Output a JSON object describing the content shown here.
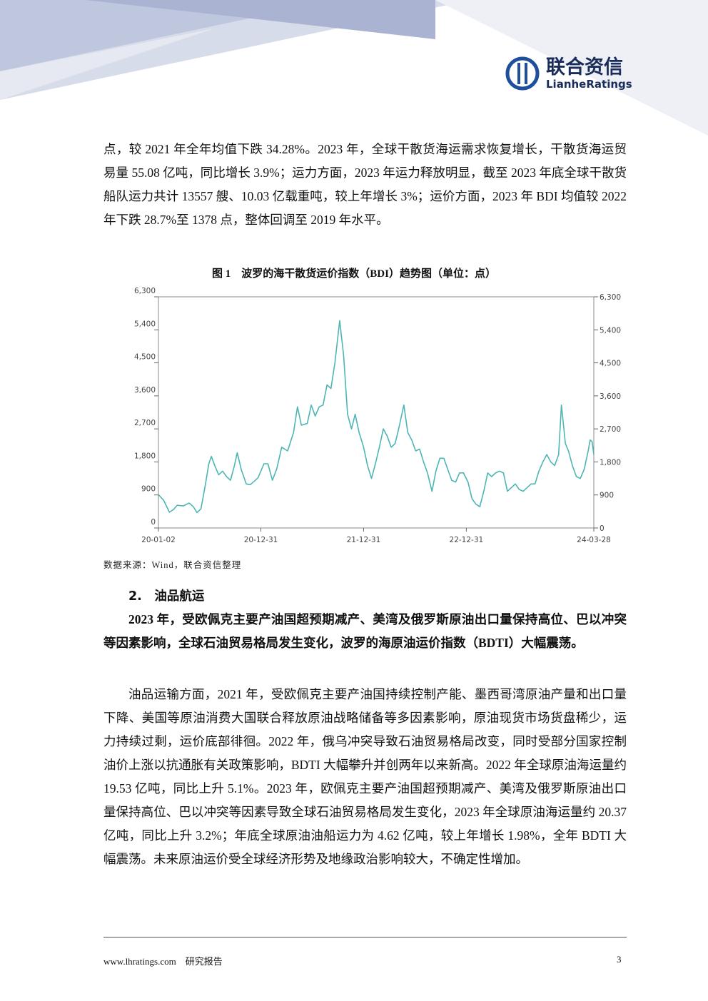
{
  "header": {
    "logo_cn": "联合资信",
    "logo_en": "LianheRatings"
  },
  "paragraphs": [
    "点，较 2021 年全年均值下跌 34.28%。2023 年，全球干散货海运需求恢复增长，干散货海运贸易量 55.08 亿吨，同比增长 3.9%；运力方面，2023 年运力释放明显，截至 2023 年底全球干散货船队运力共计 13557 艘、10.03 亿载重吨，较上年增长 3%；运价方面，2023 年 BDI 均值较 2022 年下跌 28.7%至 1378 点，整体回调至 2019 年水平。"
  ],
  "figure": {
    "caption": "图 1　波罗的海干散货运价指数（BDI）趋势图（单位：点）",
    "source": "数据来源：Wind，联合资信整理"
  },
  "chart_data": {
    "type": "line",
    "x": [
      "20-01-02",
      "20-01-20",
      "20-02-10",
      "20-02-24",
      "20-03-09",
      "20-03-30",
      "20-04-20",
      "20-05-05",
      "20-05-18",
      "20-06-01",
      "20-06-15",
      "20-06-29",
      "20-07-08",
      "20-07-20",
      "20-08-03",
      "20-08-17",
      "20-08-31",
      "20-09-14",
      "20-09-28",
      "20-10-08",
      "20-10-22",
      "20-11-09",
      "20-11-23",
      "20-12-07",
      "20-12-21",
      "21-01-11",
      "21-01-25",
      "21-02-10",
      "21-02-25",
      "21-03-15",
      "21-04-05",
      "21-04-26",
      "21-05-10",
      "21-05-24",
      "21-06-14",
      "21-06-28",
      "21-07-12",
      "21-07-26",
      "21-08-09",
      "21-08-23",
      "21-09-06",
      "21-09-20",
      "21-10-07",
      "21-10-21",
      "21-11-04",
      "21-11-18",
      "21-12-01",
      "21-12-15",
      "21-12-31",
      "22-01-14",
      "22-01-28",
      "22-02-11",
      "22-02-25",
      "22-03-11",
      "22-03-25",
      "22-04-08",
      "22-04-22",
      "22-05-06",
      "22-05-23",
      "22-06-06",
      "22-06-20",
      "22-07-04",
      "22-07-18",
      "22-08-01",
      "22-08-15",
      "22-08-31",
      "22-09-14",
      "22-09-28",
      "22-10-12",
      "22-10-26",
      "22-11-09",
      "22-11-23",
      "22-12-07",
      "22-12-21",
      "23-01-06",
      "23-01-20",
      "23-02-03",
      "23-02-17",
      "23-03-03",
      "23-03-17",
      "23-03-31",
      "23-04-14",
      "23-04-28",
      "23-05-12",
      "23-05-26",
      "23-06-09",
      "23-06-23",
      "23-07-07",
      "23-07-21",
      "23-08-04",
      "23-08-18",
      "23-09-01",
      "23-09-15",
      "23-09-29",
      "23-10-13",
      "23-10-27",
      "23-11-10",
      "23-11-24",
      "23-12-04",
      "23-12-18",
      "23-12-29",
      "24-01-12",
      "24-01-26",
      "24-02-09",
      "24-02-23",
      "24-03-08",
      "24-03-15",
      "24-03-22",
      "24-03-28"
    ],
    "series": [
      {
        "name": "BDI",
        "color": "#4db6b4",
        "values": [
          907,
          760,
          430,
          500,
          620,
          600,
          680,
          580,
          420,
          520,
          1100,
          1750,
          1950,
          1700,
          1450,
          1550,
          1400,
          1300,
          1700,
          2050,
          1600,
          1200,
          1180,
          1270,
          1370,
          1750,
          1750,
          1300,
          1600,
          2200,
          2100,
          2600,
          3300,
          2800,
          2850,
          3350,
          3050,
          3300,
          3350,
          3900,
          3800,
          4500,
          5650,
          4700,
          3100,
          2700,
          3100,
          2600,
          2200,
          1700,
          1350,
          1750,
          2200,
          2700,
          2500,
          2200,
          2300,
          2750,
          3350,
          2600,
          2400,
          2100,
          2150,
          1800,
          1500,
          1000,
          1550,
          1900,
          1900,
          1600,
          1300,
          1250,
          1500,
          1500,
          1250,
          800,
          650,
          580,
          1000,
          1500,
          1400,
          1500,
          1550,
          1500,
          1000,
          1100,
          1200,
          1050,
          1000,
          1100,
          1200,
          1200,
          1550,
          1800,
          2000,
          1800,
          1700,
          2000,
          3350,
          2300,
          2100,
          1700,
          1400,
          1350,
          1600,
          2100,
          2400,
          2350,
          2000
        ]
      }
    ],
    "xlim": [
      "20-01-02",
      "24-03-28"
    ],
    "xticks": [
      "20-01-02",
      "20-12-31",
      "21-12-31",
      "22-12-31",
      "24-03-28"
    ],
    "ylim": [
      0,
      6300
    ],
    "yticks": [
      0,
      900,
      {
        "value": 1800,
        "label": "1,800"
      },
      {
        "value": 2700,
        "label": "2,700"
      },
      {
        "value": 3600,
        "label": "3,600"
      },
      {
        "value": 4500,
        "label": "4,500"
      },
      {
        "value": 5400,
        "label": "5,400"
      },
      {
        "value": 6300,
        "label": "6,300"
      }
    ],
    "y2lim": [
      0,
      6300
    ],
    "y2ticks": [
      0,
      900,
      {
        "value": 1800,
        "label": "1,800"
      },
      {
        "value": 2700,
        "label": "2,700"
      },
      {
        "value": 3600,
        "label": "3,600"
      },
      {
        "value": 4500,
        "label": "4,500"
      },
      {
        "value": 5400,
        "label": "5,400"
      },
      {
        "value": 6300,
        "label": "6,300"
      }
    ],
    "grid": false
  },
  "section": {
    "heading": "2.　油品航运",
    "lead": "2023 年，受欧佩克主要产油国超预期减产、美湾及俄罗斯原油出口量保持高位、巴以冲突等因素影响，全球石油贸易格局发生变化，波罗的海原油运价指数（BDTI）大幅震荡。",
    "body": "油品运输方面，2021 年，受欧佩克主要产油国持续控制产能、墨西哥湾原油产量和出口量下降、美国等原油消费大国联合释放原油战略储备等多因素影响，原油现货市场货盘稀少，运力持续过剩，运价底部徘徊。2022 年，俄乌冲突导致石油贸易格局改变，同时受部分国家控制油价上涨以抗通胀有关政策影响，BDTI 大幅攀升并创两年以来新高。2022 年全球原油海运量约 19.53 亿吨，同比上升 5.1%。2023 年，欧佩克主要产油国超预期减产、美湾及俄罗斯原油出口量保持高位、巴以冲突等因素导致全球石油贸易格局发生变化，2023 年全球原油海运量约 20.37 亿吨，同比上升 3.2%；年底全球原油油船运力为 4.62 亿吨，较上年增长 1.98%，全年 BDTI 大幅震荡。未来原油运价受全球经济形势及地缘政治影响较大，不确定性增加。"
  },
  "footer": {
    "site": "www.lhratings.com",
    "label": "研究报告",
    "page": "3"
  }
}
